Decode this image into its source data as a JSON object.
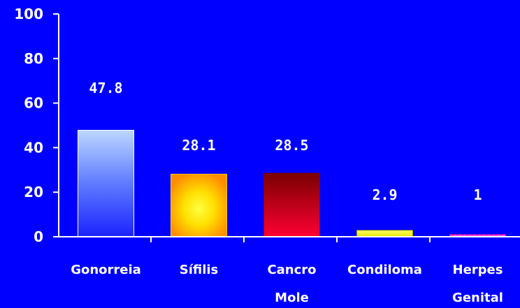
{
  "chart_data": {
    "type": "bar",
    "categories": [
      "Gonorreia",
      "Sífilis",
      "Cancro Mole",
      "Condiloma",
      "Herpes Genital"
    ],
    "category_lines": [
      [
        "Gonorreia"
      ],
      [
        "Sífilis"
      ],
      [
        "Cancro",
        "Mole"
      ],
      [
        "Condiloma"
      ],
      [
        "Herpes",
        "Genital"
      ]
    ],
    "values": [
      47.8,
      28.1,
      28.5,
      2.9,
      1
    ],
    "data_labels": [
      "47.8",
      "28.1",
      "28.5",
      "2.9",
      "1"
    ],
    "yticks": [
      "0",
      "20",
      "40",
      "60",
      "80",
      "100"
    ],
    "ylim": [
      0,
      100
    ],
    "grid": false,
    "title": "",
    "xlabel": "",
    "ylabel": "",
    "background_color": "#0000ff",
    "bar_styles": [
      "blue-gradient",
      "yellow-orange-radial",
      "red-gradient",
      "yellow",
      "magenta-hatched"
    ]
  }
}
